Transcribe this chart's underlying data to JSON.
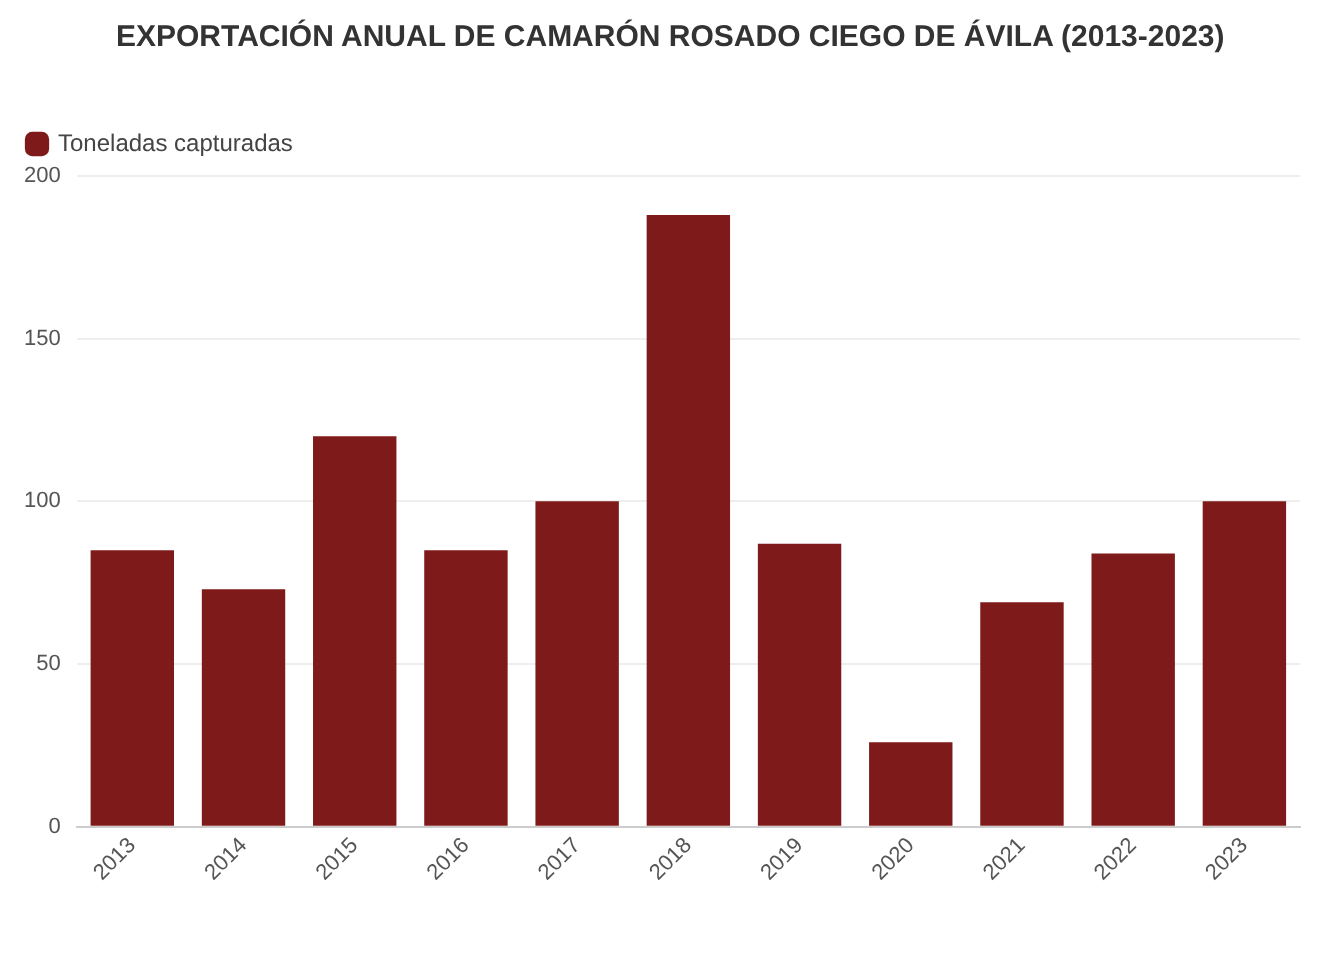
{
  "chart_data": {
    "type": "bar",
    "title": "EXPORTACIÓN ANUAL DE CAMARÓN ROSADO CIEGO DE ÁVILA (2013-2023)",
    "categories": [
      "2013",
      "2014",
      "2015",
      "2016",
      "2017",
      "2018",
      "2019",
      "2020",
      "2021",
      "2022",
      "2023"
    ],
    "series": [
      {
        "name": "Toneladas capturadas",
        "color": "#7f1a1a",
        "values": [
          85,
          73,
          120,
          85,
          100,
          188,
          87,
          26,
          69,
          84,
          100
        ]
      }
    ],
    "ylim": [
      0,
      200
    ],
    "yticks": [
      0,
      50,
      100,
      150,
      200
    ],
    "grid": "y",
    "legend": "top left"
  }
}
